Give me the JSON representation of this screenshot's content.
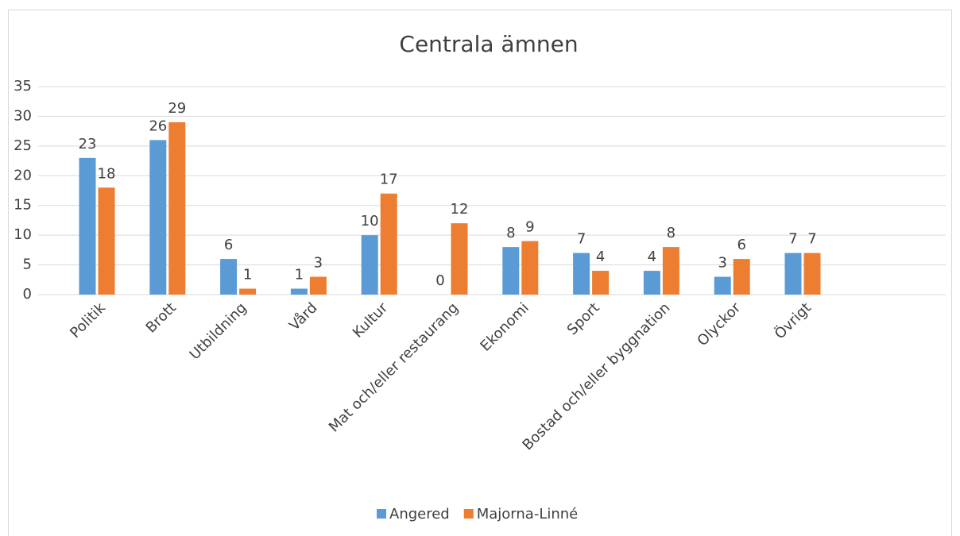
{
  "chart_data": {
    "type": "bar",
    "title": "Centrala ämnen",
    "categories": [
      "Politik",
      "Brott",
      "Utbildning",
      "Vård",
      "Kultur",
      "Mat och/eller restaurang",
      "Ekonomi",
      "Sport",
      "Bostad och/eller byggnation",
      "Olyckor",
      "Övrigt"
    ],
    "series": [
      {
        "name": "Angered",
        "color": "#5b9bd5",
        "values": [
          23,
          26,
          6,
          1,
          10,
          0,
          8,
          7,
          4,
          3,
          7
        ]
      },
      {
        "name": "Majorna-Linné",
        "color": "#ed7d31",
        "values": [
          18,
          29,
          1,
          3,
          17,
          12,
          9,
          4,
          8,
          6,
          7
        ]
      }
    ],
    "ylim": [
      0,
      35
    ],
    "yticks": [
      0,
      5,
      10,
      15,
      20,
      25,
      30,
      35
    ],
    "grid": true,
    "legend": "bottom"
  }
}
